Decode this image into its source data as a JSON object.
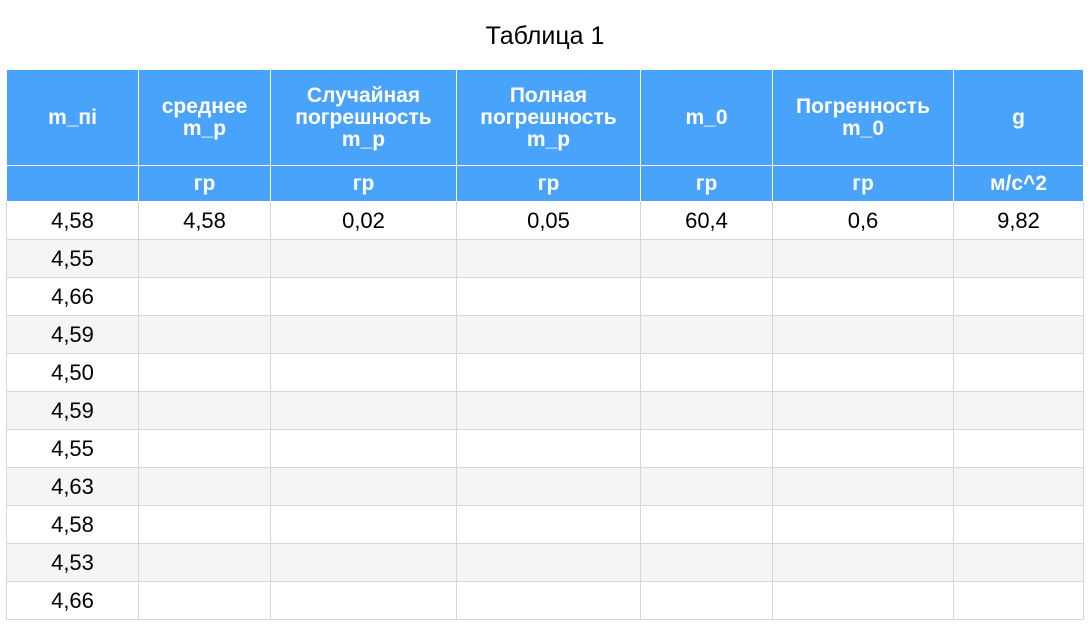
{
  "title": "Таблица 1",
  "columns": [
    {
      "name": "m_пi",
      "unit": ""
    },
    {
      "name": "среднее m_р",
      "unit": "гр"
    },
    {
      "name": "Случайная погрешность m_р",
      "unit": "гр"
    },
    {
      "name": "Полная погрешность m_р",
      "unit": "гр"
    },
    {
      "name": "m_0",
      "unit": "гр"
    },
    {
      "name": "Погренность m_0",
      "unit": "гр"
    },
    {
      "name": "g",
      "unit": "м/с^2"
    }
  ],
  "rows": [
    [
      "4,58",
      "4,58",
      "0,02",
      "0,05",
      "60,4",
      "0,6",
      "9,82"
    ],
    [
      "4,55",
      "",
      "",
      "",
      "",
      "",
      ""
    ],
    [
      "4,66",
      "",
      "",
      "",
      "",
      "",
      ""
    ],
    [
      "4,59",
      "",
      "",
      "",
      "",
      "",
      ""
    ],
    [
      "4,50",
      "",
      "",
      "",
      "",
      "",
      ""
    ],
    [
      "4,59",
      "",
      "",
      "",
      "",
      "",
      ""
    ],
    [
      "4,55",
      "",
      "",
      "",
      "",
      "",
      ""
    ],
    [
      "4,63",
      "",
      "",
      "",
      "",
      "",
      ""
    ],
    [
      "4,58",
      "",
      "",
      "",
      "",
      "",
      ""
    ],
    [
      "4,53",
      "",
      "",
      "",
      "",
      "",
      ""
    ],
    [
      "4,66",
      "",
      "",
      "",
      "",
      "",
      ""
    ]
  ],
  "colors": {
    "header_bg": "#4aa3fb",
    "header_text": "#ffffff",
    "stripe": "#f5f5f3",
    "border": "#d6d6d6"
  }
}
